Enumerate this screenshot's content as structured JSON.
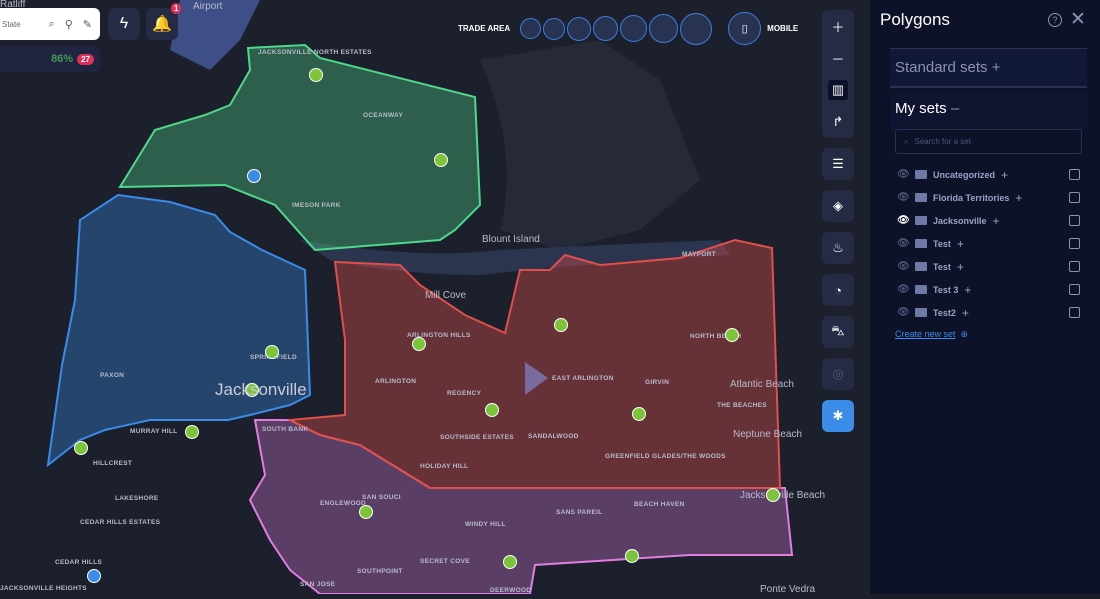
{
  "search": {
    "placeholder_partial": "State"
  },
  "alerts": {
    "notification_count": "1"
  },
  "stats": {
    "percent": "86%",
    "count": "27"
  },
  "trade_area": {
    "label": "TRADE AREA",
    "circle_count": 7,
    "mobile_label": "MOBILE"
  },
  "map": {
    "colors": {
      "green": "#4ed88a",
      "blue": "#3a8ce8",
      "red": "#e0504a",
      "purple": "#e07ee0"
    },
    "big_label": "Jacksonville",
    "labels": [
      "JACKSONVILLE NORTH ESTATES",
      "OCEANWAY",
      "IMESON PARK",
      "ARLINGTON HILLS",
      "ARLINGTON",
      "REGENCY",
      "EAST ARLINGTON",
      "GIRVIN",
      "NORTH BEACH",
      "THE BEACHES",
      "SOUTHSIDE ESTATES",
      "SANDALWOOD",
      "GREENFIELD GLADES/THE WOODS",
      "HOLIDAY HILL",
      "MURRAY HILL",
      "HILLCREST",
      "LAKESHORE",
      "CEDAR HILLS ESTATES",
      "CEDAR HILLS",
      "JACKSONVILLE HEIGHTS",
      "PAXON",
      "SPRINGFIELD",
      "SAN SOUCI",
      "ENGLEWOOD",
      "WINDY HILL",
      "SANS PAREIL",
      "BEACH HAVEN",
      "SECRET COVE",
      "SOUTHPOINT",
      "SAN JOSE",
      "DEERWOOD",
      "MAYPORT",
      "SOUTH BANK"
    ],
    "place_labels": [
      "Blount Island",
      "Atlantic Beach",
      "Neptune Beach",
      "Ponte Vedra",
      "Jacksonville Beach",
      "Mill Cove",
      "Airport",
      "Ratliff"
    ]
  },
  "toolbar": [
    "zoom-in",
    "zoom-out",
    "map",
    "route",
    "list-location",
    "layers",
    "fire",
    "chart",
    "car",
    "target",
    "puzzle"
  ],
  "panel": {
    "title": "Polygons",
    "standard_sets": "Standard sets",
    "my_sets": "My sets",
    "search_placeholder": "Search for a set",
    "sets": [
      {
        "name": "Uncategorized",
        "visible": false
      },
      {
        "name": "Florida Territories",
        "visible": false
      },
      {
        "name": "Jacksonville",
        "visible": true
      },
      {
        "name": "Test",
        "visible": false
      },
      {
        "name": "Test",
        "visible": false
      },
      {
        "name": "Test 3",
        "visible": false
      },
      {
        "name": "Test2",
        "visible": false
      }
    ],
    "create_label": "Create new set"
  }
}
